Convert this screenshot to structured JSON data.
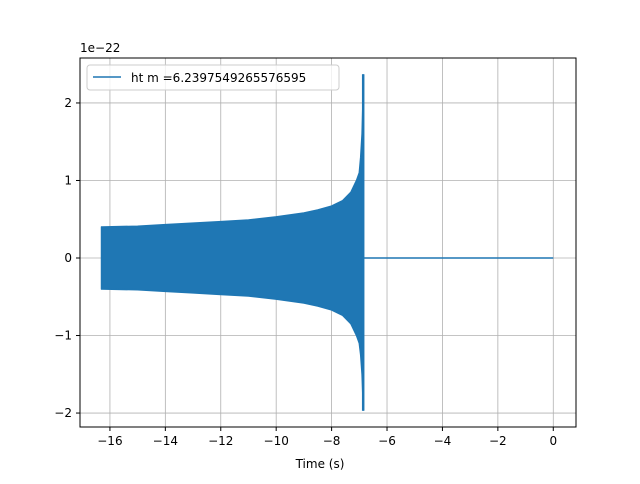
{
  "chart_data": {
    "type": "line",
    "xlabel": "Time (s)",
    "ylabel": "",
    "offset_label": "1e−22",
    "xlim": [
      -17.08,
      0.82
    ],
    "ylim": [
      -2.18,
      2.58
    ],
    "xticks": [
      -16,
      -14,
      -12,
      -10,
      -8,
      -6,
      -4,
      -2,
      0
    ],
    "xtick_labels": [
      "−16",
      "−14",
      "−12",
      "−10",
      "−8",
      "−6",
      "−4",
      "−2",
      "0"
    ],
    "yticks": [
      -2,
      -1,
      0,
      1,
      2
    ],
    "ytick_labels": [
      "−2",
      "−1",
      "0",
      "1",
      "2"
    ],
    "grid": true,
    "legend_position": "top-left",
    "series": [
      {
        "name": "ht m =6.2397549265576595",
        "color": "#1f77b4",
        "description_of_shape": "rapid oscillation filling an envelope",
        "envelope": {
          "t": [
            -16.3,
            -15,
            -14,
            -13,
            -12,
            -11,
            -10,
            -9,
            -8.5,
            -8,
            -7.6,
            -7.3,
            -7.1,
            -7.0,
            -6.95,
            -6.9,
            -6.87,
            -6.86
          ],
          "upper": [
            0.4,
            0.41,
            0.43,
            0.45,
            0.47,
            0.49,
            0.53,
            0.58,
            0.62,
            0.67,
            0.74,
            0.85,
            1.0,
            1.1,
            1.3,
            1.6,
            2.0,
            2.37
          ],
          "lower": [
            -0.4,
            -0.41,
            -0.43,
            -0.45,
            -0.47,
            -0.49,
            -0.53,
            -0.58,
            -0.62,
            -0.67,
            -0.74,
            -0.85,
            -1.0,
            -1.1,
            -1.25,
            -1.5,
            -1.8,
            -1.97
          ]
        },
        "post_merger": {
          "t": [
            -6.85,
            0
          ],
          "y": [
            0,
            0
          ]
        }
      }
    ]
  }
}
